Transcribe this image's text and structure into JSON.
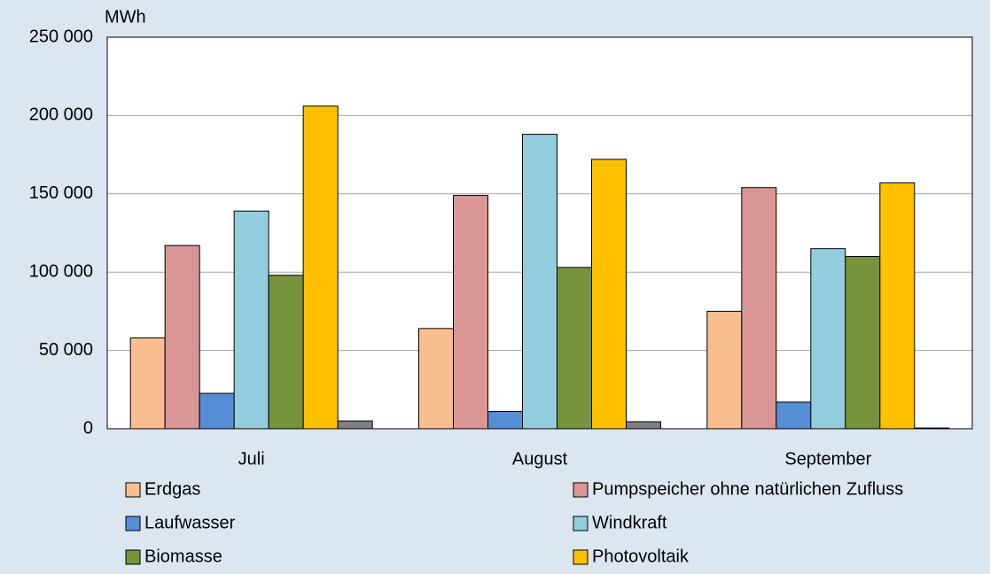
{
  "chart_data": {
    "type": "bar",
    "y_label": "MWh",
    "categories": [
      "Juli",
      "August",
      "September"
    ],
    "series": [
      {
        "name": "Erdgas",
        "color": "#f9be8f",
        "values": [
          58000,
          64000,
          75000
        ]
      },
      {
        "name": "Pumpspeicher ohne natürlichen Zufluss",
        "color": "#d99694",
        "values": [
          117000,
          149000,
          154000
        ]
      },
      {
        "name": "Laufwasser",
        "color": "#558ed5",
        "values": [
          22600,
          11000,
          17000
        ]
      },
      {
        "name": "Windkraft",
        "color": "#93cddd",
        "values": [
          139000,
          188000,
          115000
        ]
      },
      {
        "name": "Biomasse",
        "color": "#77933c",
        "values": [
          98000,
          103000,
          110000
        ]
      },
      {
        "name": "Photovoltaik",
        "color": "#ffc000",
        "values": [
          206000,
          172000,
          157000
        ]
      },
      {
        "color": "#7f7f7f",
        "values": [
          5000,
          4500,
          500
        ]
      }
    ],
    "ylim": [
      0,
      250000
    ],
    "yticks": [
      0,
      {
        "value": 50000,
        "label": "50 000"
      },
      {
        "value": 100000,
        "label": "100 000"
      },
      {
        "value": 150000,
        "label": "150 000"
      },
      {
        "value": 200000,
        "label": "200 000"
      },
      {
        "value": 250000,
        "label": "250 000"
      }
    ],
    "grid": true
  }
}
